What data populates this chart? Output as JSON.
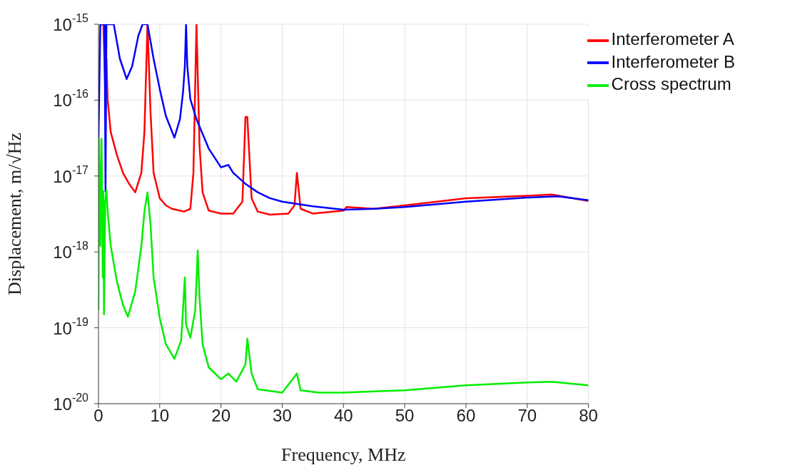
{
  "chart_data": {
    "type": "line",
    "xlabel": "Frequency, MHz",
    "ylabel": "Displacement, m/√Hz",
    "log": "y",
    "grid": true,
    "legend": "top right",
    "marker": "none",
    "line_style": "solid",
    "xlim": [
      0,
      80
    ],
    "xticks": [
      0,
      10,
      20,
      30,
      40,
      50,
      60,
      70,
      80
    ],
    "ylim": [
      1e-20,
      1e-15
    ],
    "yticks": [
      {
        "value": 1e-20,
        "label": "10$^{-20}$"
      },
      {
        "value": 1e-19,
        "label": "10$^{-19}$"
      },
      {
        "value": 1e-18,
        "label": "10$^{-18}$"
      },
      {
        "value": 1e-17,
        "label": "10$^{-17}$"
      },
      {
        "value": 1e-16,
        "label": "10$^{-16}$"
      },
      {
        "value": 1e-15,
        "label": "10$^{-15}$"
      }
    ],
    "series": [
      {
        "name": "Interferometer A",
        "color": "#ff0000",
        "x": [
          0.3,
          0.8,
          1.1,
          1.3,
          1.5,
          2,
          3,
          4,
          5,
          6,
          7,
          7.5,
          8,
          8.5,
          9,
          10,
          11,
          12,
          14,
          15,
          15.5,
          16,
          16.5,
          17,
          18,
          20,
          22,
          23.5,
          24,
          24.3,
          25,
          26,
          28,
          31,
          32,
          32.4,
          33,
          35,
          40,
          40.5,
          45,
          50,
          60,
          70,
          74,
          80
        ],
        "values": [
          1e-15,
          1e-15,
          1.4e-16,
          3.5e-16,
          1e-16,
          3.8e-17,
          1.9e-17,
          1.1e-17,
          7.9e-18,
          6.1e-18,
          1.1e-17,
          3.8e-17,
          1e-15,
          6.9e-17,
          1.1e-17,
          5.1e-18,
          4.1e-18,
          3.7e-18,
          3.4e-18,
          3.7e-18,
          1.1e-17,
          1e-15,
          2.5e-17,
          6.1e-18,
          3.5e-18,
          3.2e-18,
          3.2e-18,
          4.6e-18,
          6e-17,
          6e-17,
          5.1e-18,
          3.4e-18,
          3.1e-18,
          3.2e-18,
          4.1e-18,
          1.1e-17,
          3.7e-18,
          3.2e-18,
          3.5e-18,
          3.9e-18,
          3.7e-18,
          4.1e-18,
          5.1e-18,
          5.5e-18,
          5.7e-18,
          4.7e-18
        ]
      },
      {
        "name": "Interferometer B",
        "color": "#0000ff",
        "x": [
          0,
          0.3,
          1,
          1.15,
          1.3,
          2.5,
          3.5,
          4.6,
          5.5,
          6.5,
          7.2,
          8,
          9,
          10,
          11,
          12.4,
          13.3,
          13.8,
          14.1,
          14.3,
          14.5,
          15,
          16,
          18,
          20,
          21.2,
          22,
          24,
          26,
          28,
          30,
          35,
          40,
          45,
          50,
          60,
          70,
          75,
          80
        ],
        "values": [
          3.1e-17,
          1e-15,
          1e-15,
          6.3e-18,
          1e-15,
          1e-15,
          3.5e-16,
          1.9e-16,
          2.8e-16,
          7e-16,
          1e-15,
          1e-15,
          3.5e-16,
          1.4e-16,
          6.2e-17,
          3.2e-17,
          5.6e-17,
          1.26e-16,
          2.8e-16,
          1e-15,
          2.8e-16,
          1.03e-16,
          5.6e-17,
          2.3e-17,
          1.3e-17,
          1.4e-17,
          1.1e-17,
          7.9e-18,
          6.1e-18,
          5.1e-18,
          4.6e-18,
          4e-18,
          3.6e-18,
          3.7e-18,
          3.9e-18,
          4.6e-18,
          5.2e-18,
          5.4e-18,
          4.8e-18
        ]
      },
      {
        "name": "Cross spectrum",
        "color": "#00ee00",
        "x": [
          0,
          0.1,
          0.3,
          0.5,
          0.7,
          0.8,
          0.9,
          1.1,
          1.3,
          1.5,
          2,
          3,
          4,
          4.8,
          6,
          7,
          7.5,
          8,
          8.5,
          9,
          10,
          11,
          12.4,
          13.5,
          14.1,
          14.3,
          15,
          15.8,
          16.2,
          16.5,
          17,
          18,
          20,
          21.2,
          22.5,
          24,
          24.3,
          25,
          26,
          30,
          32.4,
          33,
          36,
          40,
          45,
          50,
          60,
          70,
          74,
          80
        ],
        "values": [
          1.7e-19,
          3.1e-17,
          1.2e-18,
          3.1e-17,
          4.6e-19,
          6.3e-18,
          1.5e-19,
          4.6e-18,
          6.5e-18,
          3.4e-18,
          1.2e-18,
          4.1e-19,
          2e-19,
          1.4e-19,
          3e-19,
          1.2e-18,
          3.4e-18,
          6.1e-18,
          2.3e-18,
          4.6e-19,
          1.35e-19,
          6.1e-20,
          3.9e-20,
          6.8e-20,
          4.6e-19,
          1.1e-19,
          7.4e-20,
          1.7e-19,
          1.05e-18,
          2.5e-19,
          6.1e-20,
          3e-20,
          2.1e-20,
          2.5e-20,
          1.95e-20,
          3.3e-20,
          7.2e-20,
          2.5e-20,
          1.55e-20,
          1.4e-20,
          2.5e-20,
          1.5e-20,
          1.4e-20,
          1.4e-20,
          1.45e-20,
          1.5e-20,
          1.75e-20,
          1.9e-20,
          1.95e-20,
          1.75e-20
        ]
      }
    ]
  }
}
